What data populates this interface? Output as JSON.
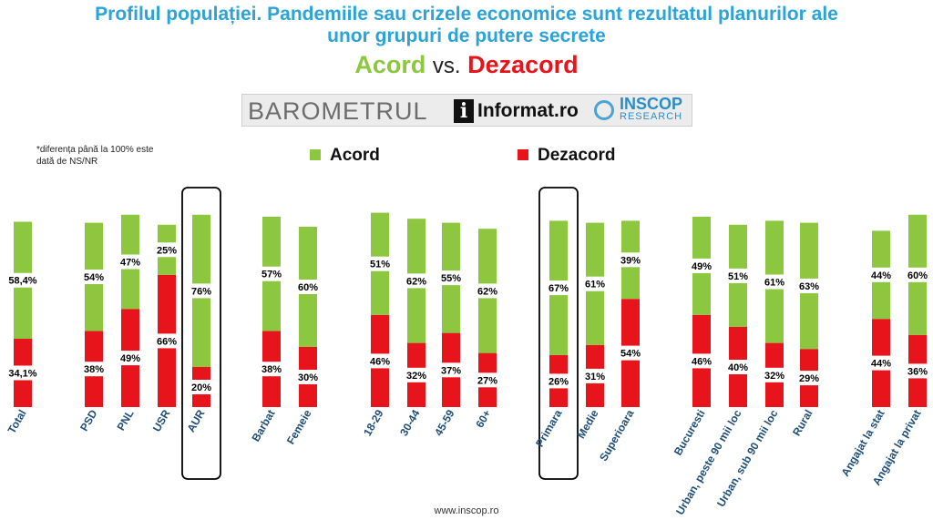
{
  "header": {
    "title_line1": "Profilul populației. Pandemiile sau crizele economice sunt rezultatul planurilor ale",
    "title_line2": "unor grupuri de putere secrete",
    "subtitle_acord": "Acord",
    "subtitle_vs": "vs.",
    "subtitle_dezacord": "Dezacord"
  },
  "logos": {
    "barometrul": "BAROMETRUL",
    "informat_icon": "i",
    "informat": "Informat.ro",
    "inscop": "INSCOP",
    "inscop_sub": "RESEARCH"
  },
  "note": "*diferența până la 100% este dată de NS/NR",
  "footer": "www.inscop.ro",
  "colors": {
    "acord": "#8dc63f",
    "dezacord": "#e8141b",
    "title": "#2aa3d8",
    "category": "#1f4e79"
  },
  "chart_data": {
    "type": "bar",
    "stacked": true,
    "categories": [
      "Total",
      "PSD",
      "PNL",
      "USR",
      "AUR",
      "Barbat",
      "Femeie",
      "18-29",
      "30-44",
      "45-59",
      "60+",
      "Primara",
      "Medie",
      "Superioara",
      "Bucuresti",
      "Urban, peste 90 mii loc",
      "Urban, sub 90 mii loc",
      "Rural",
      "Angajat la stat",
      "Angajat la privat"
    ],
    "series": [
      {
        "name": "Dezacord",
        "values": [
          34.1,
          38,
          49,
          66,
          20,
          38,
          30,
          46,
          32,
          37,
          27,
          26,
          31,
          54,
          46,
          40,
          32,
          29,
          44,
          36
        ],
        "labels": [
          "34,1%",
          "38%",
          "49%",
          "66%",
          "20%",
          "38%",
          "30%",
          "46%",
          "32%",
          "37%",
          "27%",
          "26%",
          "31%",
          "54%",
          "46%",
          "40%",
          "32%",
          "29%",
          "44%",
          "36%"
        ]
      },
      {
        "name": "Acord",
        "values": [
          58.4,
          54,
          47,
          25,
          76,
          57,
          60,
          51,
          62,
          55,
          62,
          67,
          61,
          39,
          49,
          51,
          61,
          63,
          44,
          60
        ],
        "labels": [
          "58,4%",
          "54%",
          "47%",
          "25%",
          "76%",
          "57%",
          "60%",
          "51%",
          "62%",
          "55%",
          "62%",
          "67%",
          "61%",
          "39%",
          "49%",
          "51%",
          "61%",
          "63%",
          "44%",
          "60%"
        ]
      }
    ],
    "highlighted": [
      "AUR",
      "Primara"
    ],
    "ylim": [
      0,
      100
    ],
    "legend_position": "top"
  }
}
